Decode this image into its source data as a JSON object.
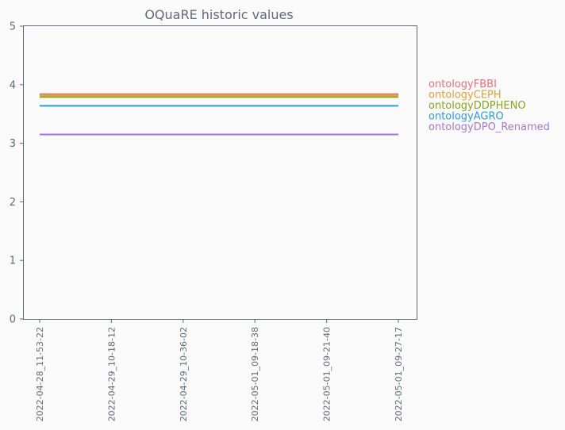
{
  "chart_data": {
    "type": "line",
    "title": "OQuaRE historic values",
    "xlabel": "",
    "ylabel": "",
    "ylim": [
      0,
      5
    ],
    "yticks": [
      0,
      1,
      2,
      3,
      4,
      5
    ],
    "grid": false,
    "legend_position": "right",
    "categories": [
      "2022-04-28_11-53-22",
      "2022-04-29_10-18-12",
      "2022-04-29_10-36-02",
      "2022-05-01_09-18-38",
      "2022-05-01_09-21-40",
      "2022-05-01_09-27-17"
    ],
    "series": [
      {
        "name": "ontologyFBBI",
        "color": "#e8707a",
        "values": [
          3.84,
          3.84,
          3.84,
          3.84,
          3.84,
          3.84
        ]
      },
      {
        "name": "ontologyCEPH",
        "color": "#e3a135",
        "values": [
          3.82,
          3.82,
          3.82,
          3.82,
          3.82,
          3.82
        ]
      },
      {
        "name": "ontologyDDPHENO",
        "color": "#86a61b",
        "values": [
          3.79,
          3.79,
          3.79,
          3.79,
          3.79,
          3.79
        ]
      },
      {
        "name": "ontologyAGRO",
        "color": "#2d9cd8",
        "values": [
          3.64,
          3.64,
          3.64,
          3.64,
          3.64,
          3.64
        ]
      },
      {
        "name": "ontologyDPO_Renamed",
        "color": "#a577cf",
        "values": [
          3.15,
          3.15,
          3.15,
          3.15,
          3.15,
          3.15
        ]
      }
    ]
  }
}
